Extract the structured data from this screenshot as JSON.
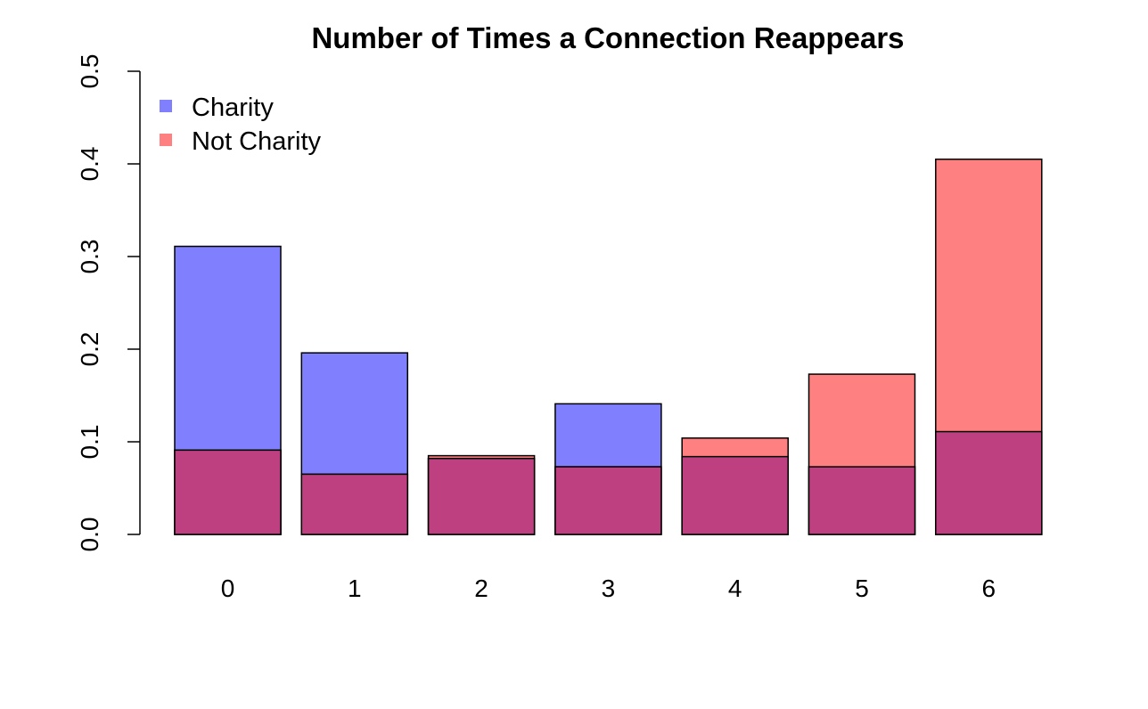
{
  "chart_data": {
    "type": "bar",
    "title": "Number of Times a Connection Reappears",
    "xlabel": "",
    "ylabel": "",
    "categories": [
      "0",
      "1",
      "2",
      "3",
      "4",
      "5",
      "6"
    ],
    "series": [
      {
        "name": "Charity",
        "color": "#8080ff",
        "values": [
          0.311,
          0.196,
          0.082,
          0.141,
          0.084,
          0.073,
          0.111
        ]
      },
      {
        "name": "Not Charity",
        "color": "#ff8080",
        "values": [
          0.091,
          0.065,
          0.085,
          0.073,
          0.104,
          0.173,
          0.405
        ]
      }
    ],
    "overlap_color": "#bf4080",
    "ylim": [
      0,
      0.5
    ],
    "yticks": [
      "0.0",
      "0.1",
      "0.2",
      "0.3",
      "0.4",
      "0.5"
    ],
    "grid": false,
    "legend_position": "top-left"
  }
}
